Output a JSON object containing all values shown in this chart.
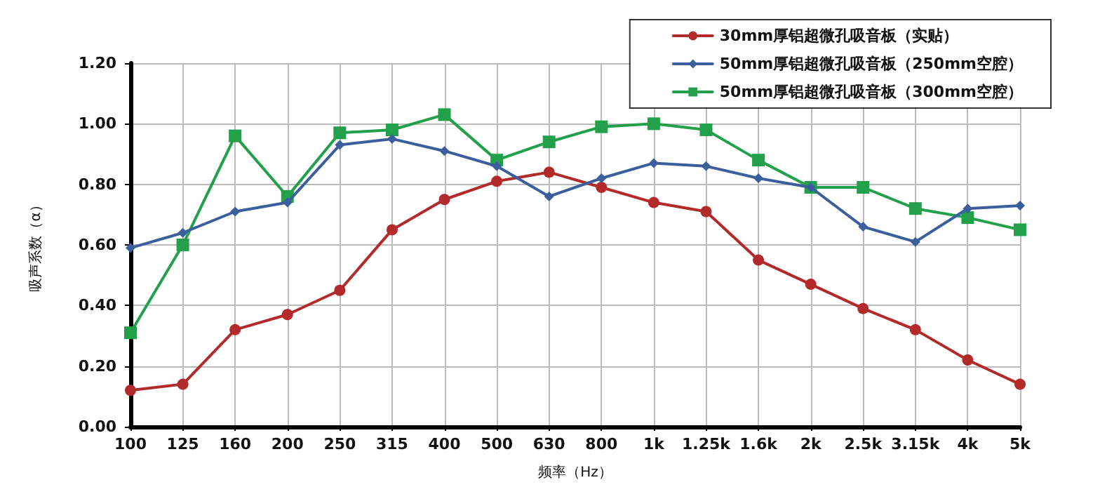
{
  "chart_data": {
    "type": "line",
    "xlabel": "频率（Hz）",
    "ylabel": "吸声系数（α）",
    "categories": [
      "100",
      "125",
      "160",
      "200",
      "250",
      "315",
      "400",
      "500",
      "630",
      "800",
      "1k",
      "1.25k",
      "1.6k",
      "2k",
      "2.5k",
      "3.15k",
      "4k",
      "5k"
    ],
    "series": [
      {
        "name": "30mm厚铝超微孔吸音板（实贴）",
        "color": "#b22a2a",
        "marker": "circle",
        "values": [
          0.12,
          0.14,
          0.32,
          0.37,
          0.45,
          0.65,
          0.75,
          0.81,
          0.84,
          0.79,
          0.74,
          0.71,
          0.55,
          0.47,
          0.39,
          0.32,
          0.22,
          0.14
        ]
      },
      {
        "name": "50mm厚铝超微孔吸音板（250mm空腔）",
        "color": "#3a5f9c",
        "marker": "diamond",
        "values": [
          0.59,
          0.64,
          0.71,
          0.74,
          0.93,
          0.95,
          0.91,
          0.86,
          0.76,
          0.82,
          0.87,
          0.86,
          0.82,
          0.79,
          0.66,
          0.61,
          0.72,
          0.73
        ]
      },
      {
        "name": "50mm厚铝超微孔吸音板（300mm空腔）",
        "color": "#22a04a",
        "marker": "square",
        "values": [
          0.31,
          0.6,
          0.96,
          0.76,
          0.97,
          0.98,
          1.03,
          0.88,
          0.94,
          0.99,
          1.0,
          0.98,
          0.88,
          0.79,
          0.79,
          0.72,
          0.69,
          0.65
        ]
      }
    ],
    "ylim": [
      0,
      1.2
    ],
    "yticks": [
      {
        "value": 0,
        "label": "0.00"
      },
      {
        "value": 0.2,
        "label": "0.20"
      },
      {
        "value": 0.4,
        "label": "0.40"
      },
      {
        "value": 0.6,
        "label": "0.60"
      },
      {
        "value": 0.8,
        "label": "0.80"
      },
      {
        "value": 1.0,
        "label": "1.00"
      },
      {
        "value": 1.2,
        "label": "1.20"
      }
    ],
    "grid": true,
    "legend": "top right",
    "line_style": "solid"
  }
}
